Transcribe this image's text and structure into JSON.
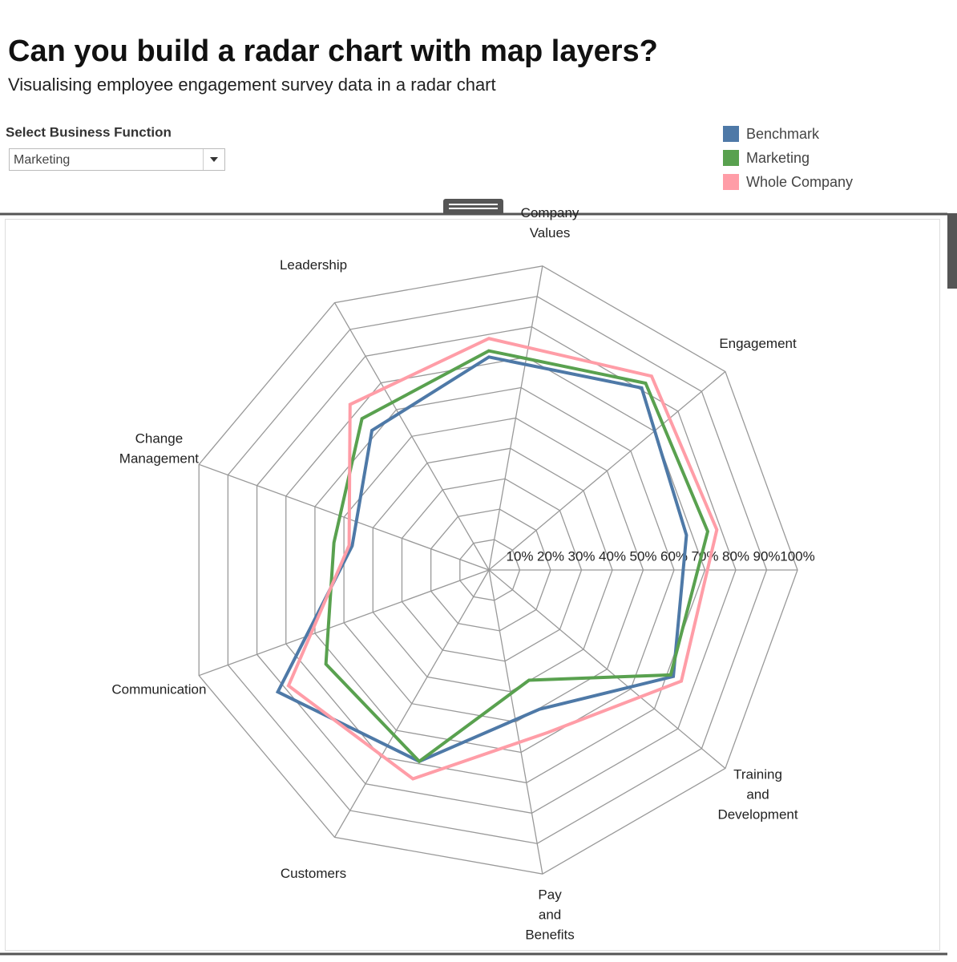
{
  "header": {
    "title": "Can you build a radar chart with map layers?",
    "subtitle": "Visualising employee engagement survey data in a radar chart"
  },
  "filter": {
    "label": "Select Business Function",
    "selected": "Marketing"
  },
  "chart_data": {
    "type": "radar",
    "categories": [
      "Company Values",
      "Engagement",
      null,
      "Training and Development",
      "Pay and Benefits",
      "Customers",
      "Communication",
      "Change Management",
      "Leadership"
    ],
    "series": [
      {
        "name": "Benchmark",
        "color": "#4e79a7",
        "values": [
          69,
          77,
          65,
          69,
          48,
          66,
          79,
          45,
          59
        ]
      },
      {
        "name": "Marketing",
        "color": "#59a14f",
        "values": [
          71,
          79,
          72,
          68,
          38,
          66,
          61,
          51,
          64
        ]
      },
      {
        "name": "Whole Company",
        "color": "#ff9da7",
        "values": [
          75,
          82,
          75,
          72,
          56,
          72,
          75,
          46,
          70
        ]
      }
    ],
    "rlim": [
      0,
      100
    ],
    "rticks": [
      {
        "value": 10,
        "label": "10%"
      },
      {
        "value": 20,
        "label": "20%"
      },
      {
        "value": 30,
        "label": "30%"
      },
      {
        "value": 40,
        "label": "40%"
      },
      {
        "value": 50,
        "label": "50%"
      },
      {
        "value": 60,
        "label": "60%"
      },
      {
        "value": 70,
        "label": "70%"
      },
      {
        "value": 80,
        "label": "80%"
      },
      {
        "value": 90,
        "label": "90%"
      },
      {
        "value": 100,
        "label": "100%"
      }
    ],
    "grid": true
  }
}
